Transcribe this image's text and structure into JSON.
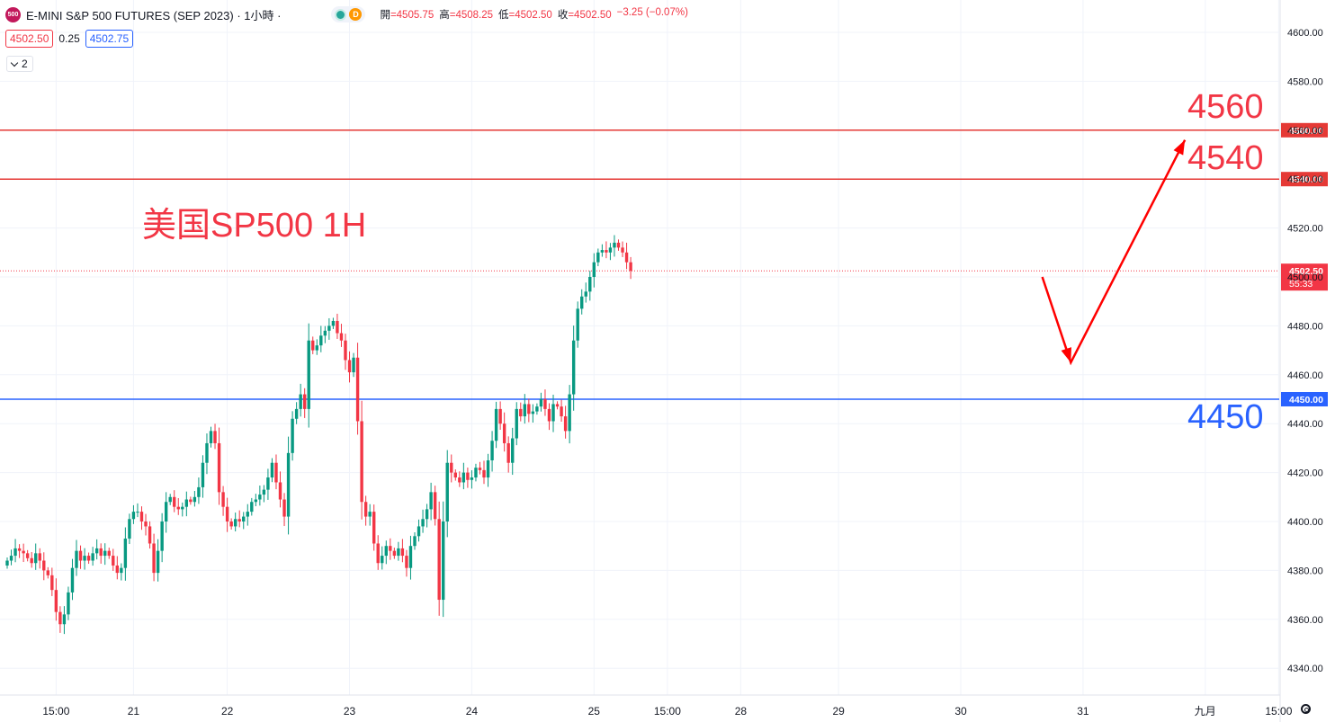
{
  "header": {
    "symbol_badge": "500",
    "title": "E-MINI S&P 500 FUTURES (SEP 2023) · 1小時 ·",
    "status_letter": "D",
    "ohlc": [
      {
        "label": "開",
        "value": "=4505.75"
      },
      {
        "label": "高",
        "value": "=4508.25"
      },
      {
        "label": "低",
        "value": "=4502.50"
      },
      {
        "label": "收",
        "value": "=4502.50"
      },
      {
        "label": "",
        "value": "−3.25 (−0.07%)"
      }
    ]
  },
  "quote": {
    "bid": "4502.50",
    "spread": "0.25",
    "ask": "4502.75"
  },
  "collapse_count": "2",
  "annotations": {
    "title_text": "美国SP500 1H",
    "level_4560": "4560",
    "level_4540": "4540",
    "level_4450": "4450"
  },
  "colors": {
    "up": "#089981",
    "down": "#f23645",
    "resistance": "#e53935",
    "support": "#2962ff",
    "arrow": "#ff0000"
  },
  "chart_data": {
    "type": "candlestick",
    "timeframe": "1H",
    "y_ticks": [
      4340,
      4360,
      4380,
      4400,
      4420,
      4440,
      4460,
      4480,
      4500,
      4520,
      4540,
      4560,
      4580,
      4600
    ],
    "y_tick_labels": [
      "4340.00",
      "4360.00",
      "4380.00",
      "4400.00",
      "4420.00",
      "4440.00",
      "4460.00",
      "4480.00",
      "4500.00",
      "4520.00",
      "4540.00",
      "4560.00",
      "4580.00",
      "4600.00"
    ],
    "ylim": [
      4327,
      4607
    ],
    "x_labels": [
      {
        "label": "15:00",
        "bar": 12
      },
      {
        "label": "21",
        "bar": 31
      },
      {
        "label": "22",
        "bar": 54
      },
      {
        "label": "23",
        "bar": 84
      },
      {
        "label": "24",
        "bar": 114
      },
      {
        "label": "25",
        "bar": 144
      },
      {
        "label": "15:00",
        "bar": 162
      },
      {
        "label": "28",
        "bar": 180
      },
      {
        "label": "29",
        "bar": 204
      },
      {
        "label": "30",
        "bar": 234
      },
      {
        "label": "31",
        "bar": 264
      },
      {
        "label": "九月",
        "bar": 294
      },
      {
        "label": "15:00",
        "bar": 312
      }
    ],
    "horizontal_lines": [
      {
        "price": 4560,
        "label": "4560.00",
        "color": "#e53935"
      },
      {
        "price": 4540,
        "label": "4540.00",
        "color": "#e53935"
      },
      {
        "price": 4450,
        "label": "4450.00",
        "color": "#2962ff"
      }
    ],
    "last_price": {
      "price": 4502.5,
      "label": "4502.50",
      "countdown": "55:33"
    },
    "arrow_path": [
      {
        "bar": 254,
        "price": 4500
      },
      {
        "bar": 261,
        "price": 4465
      },
      {
        "bar": 289,
        "price": 4556
      }
    ],
    "closes": [
      4384,
      4386,
      4389,
      4388,
      4387,
      4385,
      4383,
      4387,
      4384,
      4380,
      4378,
      4372,
      4363,
      4358,
      4362,
      4371,
      4381,
      4388,
      4384,
      4386,
      4384,
      4387,
      4389,
      4386,
      4388,
      4386,
      4382,
      4379,
      4381,
      4393,
      4401,
      4404,
      4404,
      4400,
      4398,
      4391,
      4379,
      4388,
      4400,
      4408,
      4410,
      4406,
      4405,
      4406,
      4409,
      4408,
      4410,
      4414,
      4424,
      4432,
      4437,
      4432,
      4412,
      4406,
      4400,
      4398,
      4401,
      4400,
      4402,
      4404,
      4408,
      4409,
      4411,
      4413,
      4418,
      4424,
      4416,
      4409,
      4402,
      4428,
      4442,
      4446,
      4452,
      4446,
      4474,
      4470,
      4472,
      4476,
      4478,
      4480,
      4482,
      4477,
      4474,
      4466,
      4461,
      4467,
      4441,
      4408,
      4402,
      4404,
      4391,
      4383,
      4386,
      4390,
      4388,
      4386,
      4389,
      4386,
      4381,
      4390,
      4394,
      4398,
      4401,
      4405,
      4412,
      4401,
      4368,
      4400,
      4424,
      4420,
      4418,
      4416,
      4420,
      4417,
      4418,
      4422,
      4421,
      4418,
      4425,
      4433,
      4446,
      4440,
      4432,
      4424,
      4434,
      4446,
      4443,
      4448,
      4444,
      4445,
      4447,
      4450,
      4446,
      4441,
      4448,
      4447,
      4443,
      4437,
      4452,
      4474,
      4487,
      4492,
      4494,
      4500,
      4506,
      4510,
      4511,
      4510,
      4512,
      4514,
      4512,
      4510,
      4506,
      4502.5
    ]
  }
}
